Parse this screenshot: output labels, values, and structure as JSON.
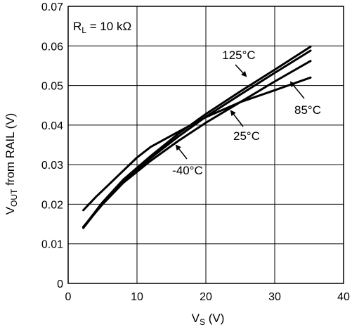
{
  "chart_data": {
    "type": "line",
    "title": "",
    "xlabel": {
      "main": "V",
      "sub": "S",
      "unit": " (V)"
    },
    "ylabel": {
      "main": "V",
      "sub": "OUT",
      "rest": " from RAIL (V)"
    },
    "xlim": [
      0,
      40
    ],
    "ylim": [
      0,
      0.07
    ],
    "xticks": [
      0,
      10,
      20,
      30,
      40
    ],
    "yticks": [
      0,
      0.01,
      0.02,
      0.03,
      0.04,
      0.05,
      0.06,
      0.07
    ],
    "xtick_labels": [
      "0",
      "10",
      "20",
      "30",
      "40"
    ],
    "ytick_labels": [
      "0",
      "0.01",
      "0.02",
      "0.03",
      "0.04",
      "0.05",
      "0.06",
      "0.07"
    ],
    "grid": true,
    "condition": {
      "main": "R",
      "sub": "L",
      "rest": " = 10 kΩ"
    },
    "series": [
      {
        "name": "125°C",
        "color": "#000000",
        "x": [
          2.2,
          5,
          8,
          12,
          16,
          20,
          25,
          30,
          35.2
        ],
        "y": [
          0.0142,
          0.0205,
          0.0262,
          0.0322,
          0.0378,
          0.0428,
          0.0485,
          0.054,
          0.0598
        ]
      },
      {
        "name": "85°C",
        "color": "#000000",
        "x": [
          2.2,
          5,
          8,
          12,
          16,
          20,
          25,
          30,
          35.2
        ],
        "y": [
          0.014,
          0.0202,
          0.0258,
          0.0317,
          0.0371,
          0.0421,
          0.0477,
          0.0532,
          0.0588
        ]
      },
      {
        "name": "25°C",
        "color": "#000000",
        "x": [
          2.2,
          5,
          8,
          12,
          16,
          20,
          25,
          30,
          35.2
        ],
        "y": [
          0.0143,
          0.02,
          0.0254,
          0.031,
          0.036,
          0.0406,
          0.0458,
          0.051,
          0.0562
        ]
      },
      {
        "name": "-40°C",
        "color": "#000000",
        "x": [
          2.2,
          4,
          7,
          10,
          12,
          16,
          20,
          25,
          30,
          35.2
        ],
        "y": [
          0.0185,
          0.0218,
          0.0268,
          0.0318,
          0.0345,
          0.0383,
          0.042,
          0.0458,
          0.0488,
          0.052
        ]
      }
    ],
    "annotations": [
      {
        "text": "125°C",
        "series": "125°C"
      },
      {
        "text": "85°C",
        "series": "85°C"
      },
      {
        "text": "25°C",
        "series": "25°C"
      },
      {
        "text": "-40°C",
        "series": "-40°C"
      }
    ]
  }
}
